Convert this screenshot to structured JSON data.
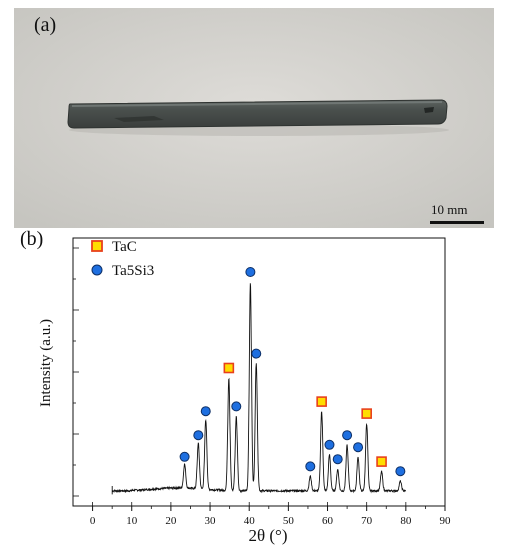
{
  "photo": {
    "panel_label": "(a)",
    "scale_bar_text": "10 mm"
  },
  "chart_data": {
    "type": "line",
    "panel_label": "(b)",
    "xlabel": "2θ (°)",
    "ylabel": "Intensity    (a.u.)",
    "xlim": [
      -5,
      90
    ],
    "xticks": [
      0,
      10,
      20,
      30,
      40,
      50,
      60,
      70,
      80,
      90
    ],
    "y_relative": true,
    "grid": false,
    "legend_position": "top-left",
    "legend": [
      {
        "name": "TaC",
        "marker": "square",
        "fill": "#ffdd00",
        "stroke": "#e8401c"
      },
      {
        "name": "Ta5Si3",
        "marker": "circle",
        "fill": "#1e6fe0",
        "stroke": "#0d2f66"
      }
    ],
    "background_level": 0.03,
    "peaks": [
      {
        "x": 23.5,
        "height": 0.1,
        "phase": "Ta5Si3"
      },
      {
        "x": 27.0,
        "height": 0.19,
        "phase": "Ta5Si3"
      },
      {
        "x": 28.9,
        "height": 0.29,
        "phase": "Ta5Si3"
      },
      {
        "x": 34.8,
        "height": 0.47,
        "phase": "TaC"
      },
      {
        "x": 36.7,
        "height": 0.31,
        "phase": "Ta5Si3"
      },
      {
        "x": 40.3,
        "height": 0.87,
        "phase": "Ta5Si3"
      },
      {
        "x": 41.8,
        "height": 0.53,
        "phase": "Ta5Si3"
      },
      {
        "x": 55.6,
        "height": 0.06,
        "phase": "Ta5Si3"
      },
      {
        "x": 58.5,
        "height": 0.33,
        "phase": "TaC"
      },
      {
        "x": 60.5,
        "height": 0.15,
        "phase": "Ta5Si3"
      },
      {
        "x": 62.6,
        "height": 0.09,
        "phase": "Ta5Si3"
      },
      {
        "x": 65.0,
        "height": 0.19,
        "phase": "Ta5Si3"
      },
      {
        "x": 67.8,
        "height": 0.14,
        "phase": "Ta5Si3"
      },
      {
        "x": 70.0,
        "height": 0.28,
        "phase": "TaC"
      },
      {
        "x": 73.8,
        "height": 0.08,
        "phase": "TaC"
      },
      {
        "x": 78.6,
        "height": 0.04,
        "phase": "Ta5Si3"
      }
    ]
  }
}
